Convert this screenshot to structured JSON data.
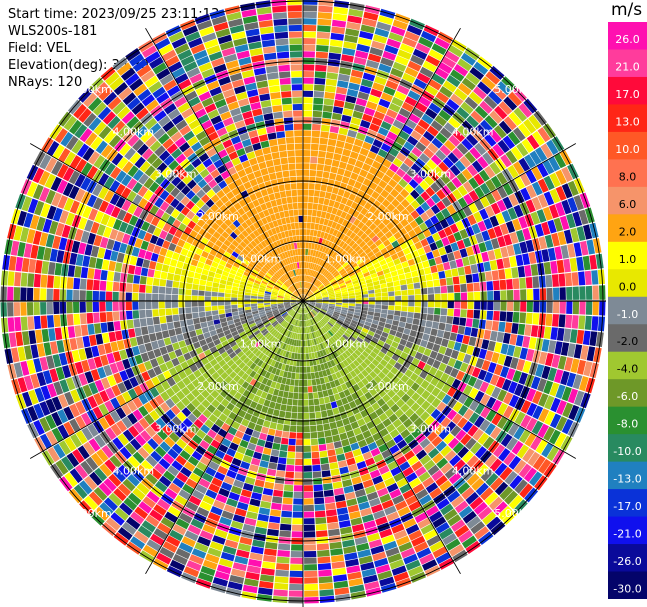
{
  "header": {
    "start_time": "Start time: 2023/09/25 23:11:13",
    "instrument": "WLS200s-181",
    "field": "Field: VEL",
    "elevation": "Elevation(deg): 35.30",
    "nrays": "NRays: 120"
  },
  "chart_data": {
    "type": "ppi",
    "field": "VEL",
    "n_rays": 120,
    "elevation_deg": 35.3,
    "range_rings_km": [
      "1.00km",
      "2.00km",
      "3.00km",
      "4.00km",
      "5.00km"
    ],
    "max_range_km": 5.25,
    "colorbar": {
      "unit": "m/s",
      "tick_labels": [
        "26.0",
        "21.0",
        "17.0",
        "13.0",
        "10.0",
        "8.0",
        "6.0",
        "2.0",
        "1.0",
        "0.0",
        "-1.0",
        "-2.0",
        "-4.0",
        "-6.0",
        "-8.0",
        "-10.0",
        "-13.0",
        "-17.0",
        "-21.0",
        "-26.0",
        "-30.0"
      ],
      "bands": [
        {
          "range": [
            26,
            30
          ],
          "color": "#ff10b0"
        },
        {
          "range": [
            21,
            26
          ],
          "color": "#ff3c9c"
        },
        {
          "range": [
            17,
            21
          ],
          "color": "#ff0a3a"
        },
        {
          "range": [
            13,
            17
          ],
          "color": "#ff2616"
        },
        {
          "range": [
            10,
            13
          ],
          "color": "#ff5826"
        },
        {
          "range": [
            8,
            10
          ],
          "color": "#ff7250"
        },
        {
          "range": [
            6,
            8
          ],
          "color": "#f6946a"
        },
        {
          "range": [
            2,
            6
          ],
          "color": "#ffa412"
        },
        {
          "range": [
            1,
            2
          ],
          "color": "#ffff00"
        },
        {
          "range": [
            0,
            1
          ],
          "color": "#e8e800"
        },
        {
          "range": [
            -1,
            0
          ],
          "color": "#7e8a96"
        },
        {
          "range": [
            -2,
            -1
          ],
          "color": "#6a6a6a"
        },
        {
          "range": [
            -4,
            -2
          ],
          "color": "#a0c830"
        },
        {
          "range": [
            -6,
            -4
          ],
          "color": "#6e9828"
        },
        {
          "range": [
            -8,
            -6
          ],
          "color": "#2a9030"
        },
        {
          "range": [
            -10,
            -8
          ],
          "color": "#288a60"
        },
        {
          "range": [
            -13,
            -10
          ],
          "color": "#2080c0"
        },
        {
          "range": [
            -17,
            -13
          ],
          "color": "#0a32d8"
        },
        {
          "range": [
            -21,
            -17
          ],
          "color": "#1010ee"
        },
        {
          "range": [
            -26,
            -21
          ],
          "color": "#0a0a9a"
        },
        {
          "range": [
            -30,
            -26
          ],
          "color": "#04046a"
        }
      ]
    }
  }
}
